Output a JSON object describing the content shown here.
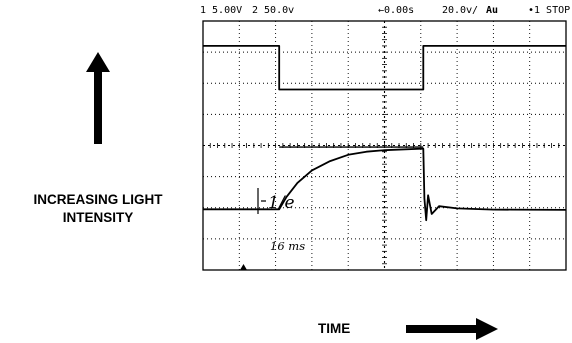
{
  "scope_header": {
    "ch1_scale": "1 5.00V",
    "ch2_scale": "2 50.0ⅴ",
    "time_offset": "←0.00s",
    "time_scale": "20.0ⅴ/",
    "trigger_mode": "Au",
    "run_state": "•1 STOP"
  },
  "annotations": {
    "time_constant": "1/e",
    "duration": "16 ms"
  },
  "axis_labels": {
    "y_line1": "INCREASING LIGHT",
    "y_line2": "INTENSITY",
    "x": "TIME"
  },
  "colors": {
    "trace": "#000000",
    "grid": "#000000",
    "background": "#ffffff"
  },
  "icons": {
    "y_arrow": "arrow-up-icon",
    "x_arrow": "arrow-right-icon"
  },
  "chart_data": {
    "type": "line",
    "title": "",
    "xlabel": "TIME",
    "ylabel": "INCREASING LIGHT INTENSITY",
    "grid": true,
    "divisions": {
      "x": 10,
      "y": 8
    },
    "x_unit": "div",
    "y_unit": "div",
    "xlim": [
      0,
      10
    ],
    "ylim": [
      0,
      8
    ],
    "series": [
      {
        "points": [
          [
            0,
            7.2
          ],
          [
            2.1,
            7.2
          ],
          [
            2.1,
            5.8
          ],
          [
            6.07,
            5.8
          ],
          [
            6.07,
            7.2
          ],
          [
            10,
            7.2
          ]
        ]
      },
      {
        "points": [
          [
            0,
            1.95
          ],
          [
            2.1,
            1.95
          ],
          [
            2.3,
            2.35
          ],
          [
            2.6,
            2.8
          ],
          [
            3.0,
            3.2
          ],
          [
            3.5,
            3.5
          ],
          [
            4.0,
            3.7
          ],
          [
            4.5,
            3.8
          ],
          [
            5.0,
            3.85
          ],
          [
            6.07,
            3.9
          ],
          [
            6.1,
            2.3
          ],
          [
            6.15,
            1.6
          ],
          [
            6.2,
            2.4
          ],
          [
            6.3,
            1.8
          ],
          [
            6.5,
            2.05
          ],
          [
            7.0,
            1.98
          ],
          [
            8.0,
            1.94
          ],
          [
            10,
            1.93
          ]
        ]
      },
      {
        "points": [
          [
            2.1,
            3.95
          ],
          [
            6.07,
            3.95
          ]
        ]
      }
    ]
  }
}
